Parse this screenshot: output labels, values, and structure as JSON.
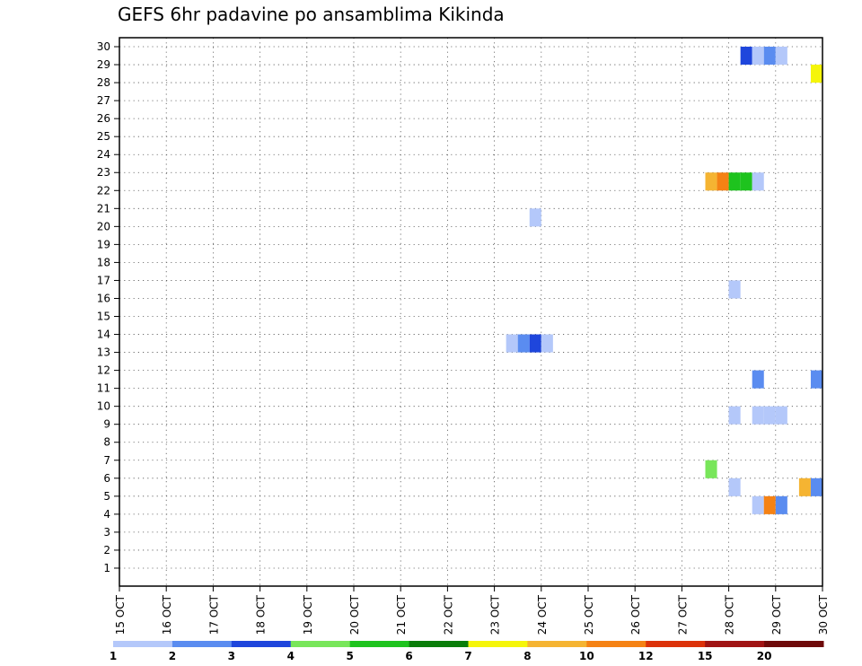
{
  "chart_data": {
    "type": "heatmap",
    "title": "GEFS 6hr padavine po ansamblima Kikinda",
    "xlabel": "",
    "ylabel": "",
    "x_tick_labels": [
      "15 OCT",
      "16 OCT",
      "17 OCT",
      "18 OCT",
      "19 OCT",
      "20 OCT",
      "21 OCT",
      "22 OCT",
      "23 OCT",
      "24 OCT",
      "25 OCT",
      "26 OCT",
      "27 OCT",
      "28 OCT",
      "29 OCT",
      "30 OCT"
    ],
    "x_range": [
      "15 OCT 00Z",
      "30 OCT 00Z"
    ],
    "y_tick_labels": [
      "1",
      "2",
      "3",
      "4",
      "5",
      "6",
      "7",
      "8",
      "9",
      "10",
      "11",
      "12",
      "13",
      "14",
      "15",
      "16",
      "17",
      "18",
      "19",
      "20",
      "21",
      "22",
      "23",
      "24",
      "25",
      "26",
      "27",
      "28",
      "29",
      "30"
    ],
    "ylim": [
      0,
      30
    ],
    "grid": true,
    "legend": {
      "placement": "bottom",
      "labels": [
        "1",
        "2",
        "3",
        "4",
        "5",
        "6",
        "7",
        "8",
        "10",
        "12",
        "15",
        "20"
      ],
      "colors": [
        "#b4c8fa",
        "#5a8cf0",
        "#1e46dc",
        "#78e65a",
        "#1ec31e",
        "#0a7d0a",
        "#f5f50a",
        "#f5b432",
        "#f58214",
        "#dc320a",
        "#a01414",
        "#6e0a0a"
      ]
    },
    "cells": [
      {
        "member": 29,
        "time": "28 OCT 06Z",
        "value": 3
      },
      {
        "member": 29,
        "time": "28 OCT 12Z",
        "value": 1
      },
      {
        "member": 29,
        "time": "28 OCT 18Z",
        "value": 2
      },
      {
        "member": 29,
        "time": "29 OCT 00Z",
        "value": 1
      },
      {
        "member": 28,
        "time": "29 OCT 18Z",
        "value": 7
      },
      {
        "member": 22,
        "time": "27 OCT 12Z",
        "value": 8
      },
      {
        "member": 22,
        "time": "27 OCT 18Z",
        "value": 10
      },
      {
        "member": 22,
        "time": "28 OCT 00Z",
        "value": 5
      },
      {
        "member": 22,
        "time": "28 OCT 06Z",
        "value": 5
      },
      {
        "member": 22,
        "time": "28 OCT 12Z",
        "value": 1
      },
      {
        "member": 20,
        "time": "23 OCT 18Z",
        "value": 1
      },
      {
        "member": 16,
        "time": "28 OCT 00Z",
        "value": 1
      },
      {
        "member": 13,
        "time": "23 OCT 06Z",
        "value": 1
      },
      {
        "member": 13,
        "time": "23 OCT 12Z",
        "value": 2
      },
      {
        "member": 13,
        "time": "23 OCT 18Z",
        "value": 3
      },
      {
        "member": 13,
        "time": "24 OCT 00Z",
        "value": 1
      },
      {
        "member": 11,
        "time": "28 OCT 12Z",
        "value": 2
      },
      {
        "member": 11,
        "time": "29 OCT 18Z",
        "value": 2
      },
      {
        "member": 9,
        "time": "28 OCT 00Z",
        "value": 1
      },
      {
        "member": 9,
        "time": "28 OCT 12Z",
        "value": 1
      },
      {
        "member": 9,
        "time": "28 OCT 18Z",
        "value": 1
      },
      {
        "member": 9,
        "time": "29 OCT 00Z",
        "value": 1
      },
      {
        "member": 6,
        "time": "27 OCT 12Z",
        "value": 4
      },
      {
        "member": 5,
        "time": "28 OCT 00Z",
        "value": 1
      },
      {
        "member": 5,
        "time": "29 OCT 12Z",
        "value": 8
      },
      {
        "member": 5,
        "time": "29 OCT 18Z",
        "value": 2
      },
      {
        "member": 4,
        "time": "28 OCT 12Z",
        "value": 1
      },
      {
        "member": 4,
        "time": "28 OCT 18Z",
        "value": 10
      },
      {
        "member": 4,
        "time": "29 OCT 00Z",
        "value": 2
      }
    ]
  }
}
